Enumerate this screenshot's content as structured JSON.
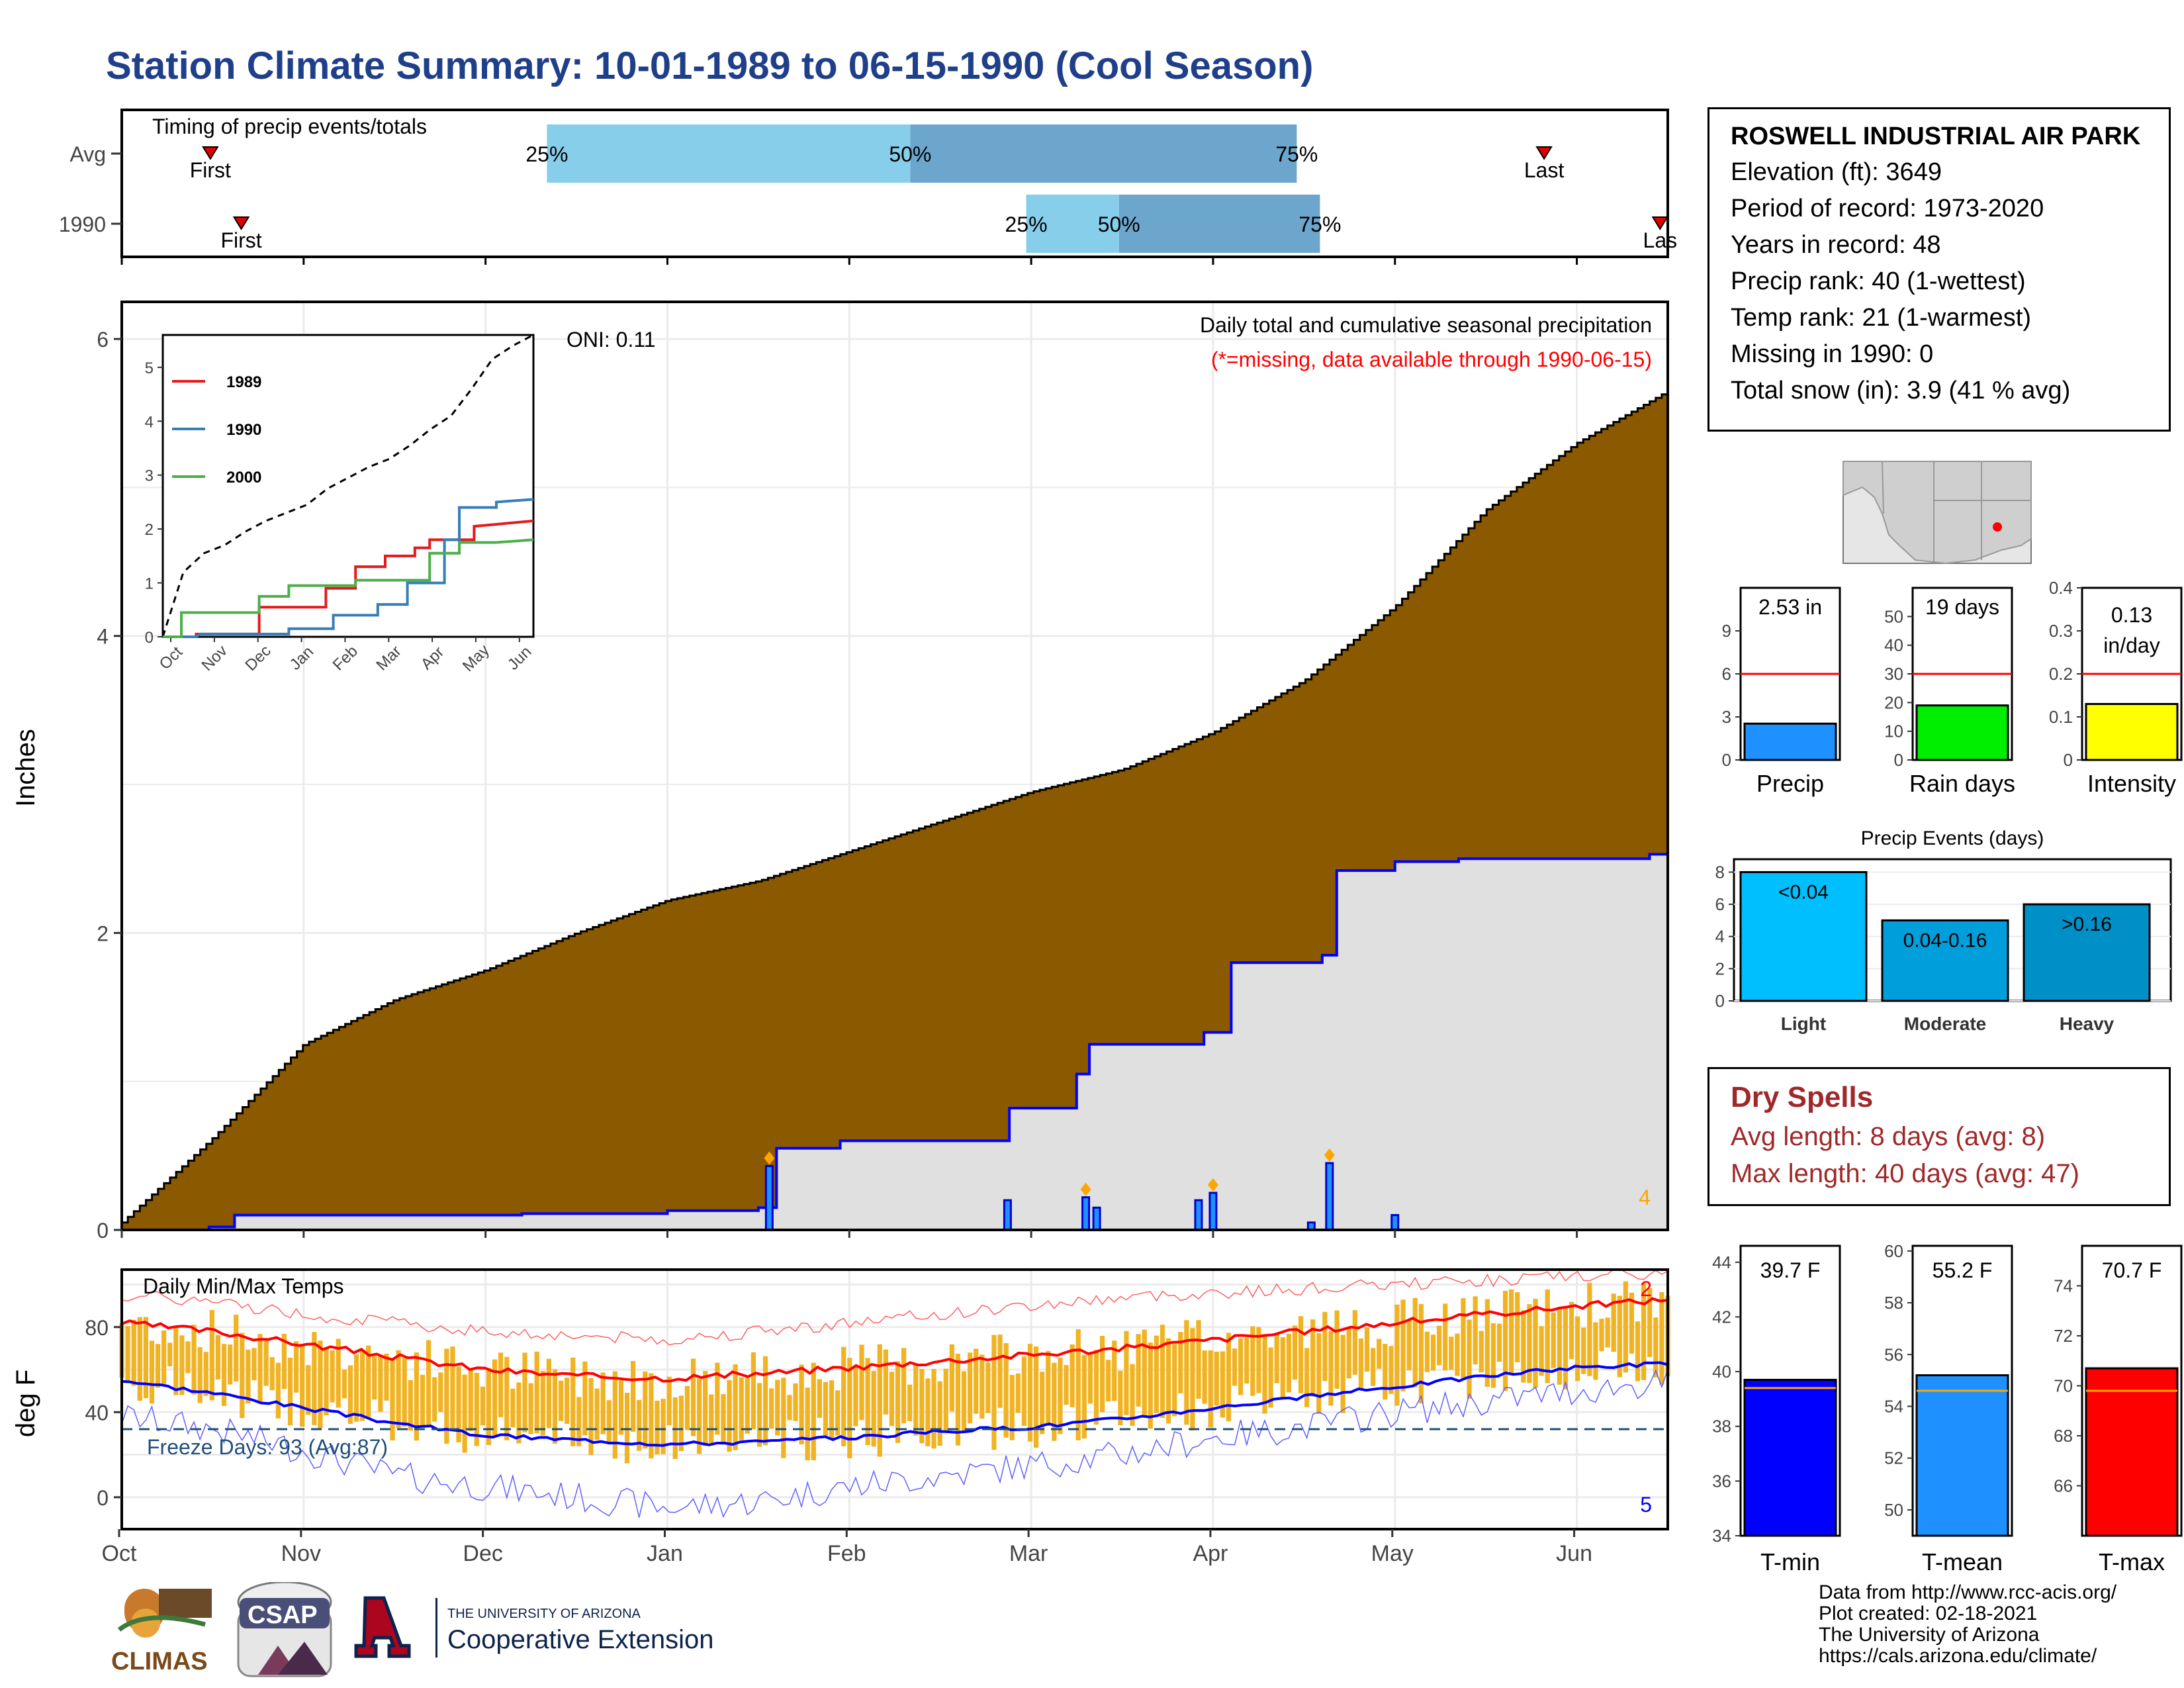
{
  "title": "Station Climate Summary: 10-01-1989 to 06-15-1990 (Cool Season)",
  "station": {
    "name": "ROSWELL INDUSTRIAL AIR PARK",
    "elevation": "Elevation (ft): 3649",
    "period": "Period of record: 1973-2020",
    "years": "Years in record: 48",
    "precip_rank": "Precip rank: 40 (1-wettest)",
    "temp_rank": "Temp rank: 21 (1-warmest)",
    "missing": "Missing in 1990: 0",
    "snow": "Total snow (in): 3.9 (41 % avg)"
  },
  "timing": {
    "label": "Timing of precip events/totals",
    "rows": [
      {
        "name": "Avg",
        "first_label": "First",
        "last_label": "Last",
        "first_x": 0.19,
        "last_x": 0.92,
        "p25": 0.275,
        "p50": 0.51,
        "p75": 0.76,
        "p25_label": "25%",
        "p50_label": "50%",
        "p75_label": "75%"
      },
      {
        "name": "1990",
        "first_label": "First",
        "last_label": "Las",
        "first_x": 0.21,
        "last_x": 0.995,
        "p25": 0.585,
        "p50": 0.645,
        "p75": 0.775,
        "p25_label": "25%",
        "p50_label": "50%",
        "p75_label": "75%"
      }
    ]
  },
  "precip_panel": {
    "ylabel": "Inches",
    "yticks": [
      0,
      2,
      4,
      6
    ],
    "ymax": 6.25,
    "caption": "Daily total and cumulative seasonal precipitation",
    "missing_note": "(*=missing, data available through 1990-06-15)",
    "oni": "ONI: 0.11",
    "event_count": "4",
    "months": [
      "Oct",
      "Nov",
      "Dec",
      "Jan",
      "Feb",
      "Mar",
      "Apr",
      "May",
      "Jun"
    ]
  },
  "inset": {
    "yticks": [
      0,
      1,
      2,
      3,
      4,
      5
    ],
    "months": [
      "Oct",
      "Nov",
      "Dec",
      "Jan",
      "Feb",
      "Mar",
      "Apr",
      "May",
      "Jun"
    ],
    "legend": [
      {
        "name": "1989",
        "color": "#e41a1c"
      },
      {
        "name": "1990",
        "color": "#377eb8"
      },
      {
        "name": "2000",
        "color": "#4daf4a"
      }
    ]
  },
  "temp_panel": {
    "ylabel": "deg F",
    "label": "Daily Min/Max Temps",
    "yticks": [
      0,
      40,
      80
    ],
    "freeze_label": "Freeze Days: 93 (Avg:87)",
    "max_count": "2",
    "min_count": "5",
    "months": [
      "Oct",
      "Nov",
      "Dec",
      "Jan",
      "Feb",
      "Mar",
      "Apr",
      "May",
      "Jun"
    ]
  },
  "mini_bars": [
    {
      "label": "Precip",
      "value_text": "2.53 in",
      "value": 2.53,
      "avg": 6,
      "ymax": 12,
      "ticks": [
        0,
        3,
        6,
        9
      ],
      "color": "#1e90ff"
    },
    {
      "label": "Rain days",
      "value_text": "19 days",
      "value": 19,
      "avg": 30,
      "ymax": 60,
      "ticks": [
        0,
        10,
        20,
        30,
        40,
        50
      ],
      "color": "#00ee00"
    },
    {
      "label": "Intensity",
      "value_text": "0.13 in/day",
      "value": 0.13,
      "avg": 0.2,
      "ymax": 0.4,
      "ticks": [
        0.0,
        0.1,
        0.2,
        0.3,
        0.4
      ],
      "color": "#ffff00"
    }
  ],
  "events": {
    "title": "Precip Events (days)",
    "ticks": [
      0,
      2,
      4,
      6,
      8
    ],
    "bars": [
      {
        "label": "Light",
        "value": 8,
        "text": "<0.04",
        "color": "#00bfff"
      },
      {
        "label": "Moderate",
        "value": 5,
        "text": "0.04-0.16",
        "color": "#009edb"
      },
      {
        "label": "Heavy",
        "value": 6,
        "text": ">0.16",
        "color": "#0090c8"
      }
    ]
  },
  "dry_spells": {
    "title": "Dry Spells",
    "avg": "Avg length: 8 days (avg: 8)",
    "max": "Max length: 40 days (avg: 47)"
  },
  "temp_bars": [
    {
      "label": "T-min",
      "value_text": "39.7 F",
      "value": 39.7,
      "avg": 39.4,
      "ymin": 34,
      "ymax": 44.6,
      "ticks": [
        34,
        36,
        38,
        40,
        42,
        44
      ],
      "color": "#0000ff"
    },
    {
      "label": "T-mean",
      "value_text": "55.2 F",
      "value": 55.2,
      "avg": 54.6,
      "ymin": 49,
      "ymax": 60.2,
      "ticks": [
        50,
        52,
        54,
        56,
        58,
        60
      ],
      "color": "#1e90ff"
    },
    {
      "label": "T-max",
      "value_text": "70.7 F",
      "value": 70.7,
      "avg": 69.8,
      "ymin": 64,
      "ymax": 75.6,
      "ticks": [
        66,
        68,
        70,
        72,
        74
      ],
      "color": "#ff0000"
    }
  ],
  "logos": {
    "climas": "CLIMAS",
    "csap": "CSAP",
    "ua_top": "THE UNIVERSITY OF ARIZONA",
    "ua_main": "Cooperative Extension"
  },
  "credits": [
    "Data from http://www.rcc-acis.org/",
    "Plot created: 02-18-2021",
    "The University of Arizona",
    "https://cals.arizona.edu/climate/"
  ],
  "chart_data": [
    {
      "type": "area",
      "title": "Daily total and cumulative seasonal precipitation",
      "ylabel": "Inches",
      "ylim": [
        0,
        6.25
      ],
      "x": [
        "Oct 1",
        "Oct 15",
        "Nov 1",
        "Nov 15",
        "Dec 1",
        "Dec 15",
        "Jan 1",
        "Jan 15",
        "Feb 1",
        "Feb 15",
        "Mar 1",
        "Mar 15",
        "Apr 1",
        "Apr 15",
        "May 1",
        "May 15",
        "Jun 1",
        "Jun 15"
      ],
      "series": [
        {
          "name": "avg cumulative",
          "values": [
            0.05,
            0.62,
            1.25,
            1.55,
            1.75,
            2.0,
            2.22,
            2.35,
            2.55,
            2.75,
            2.95,
            3.1,
            3.35,
            3.7,
            4.2,
            4.85,
            5.3,
            5.65
          ]
        },
        {
          "name": "1990 cumulative",
          "values": [
            0.0,
            0.05,
            0.1,
            0.1,
            0.11,
            0.13,
            0.15,
            0.15,
            0.58,
            0.6,
            0.6,
            1.05,
            1.3,
            2.35,
            2.45,
            2.5,
            2.5,
            2.53
          ]
        }
      ],
      "daily_events": [
        {
          "x": "Jan 18",
          "y": 0.43
        },
        {
          "x": "Feb 27",
          "y": 0.2
        },
        {
          "x": "Mar 10",
          "y": 0.22
        },
        {
          "x": "Mar 12",
          "y": 0.15
        },
        {
          "x": "Mar 29",
          "y": 0.2
        },
        {
          "x": "Apr 1",
          "y": 0.25
        },
        {
          "x": "Apr 17",
          "y": 0.05
        },
        {
          "x": "Apr 20",
          "y": 0.45
        },
        {
          "x": "May 1",
          "y": 0.1
        }
      ]
    },
    {
      "type": "line",
      "title": "Daily Min/Max Temps",
      "ylabel": "deg F",
      "ylim": [
        -15,
        107
      ],
      "x": [
        "Oct 1",
        "Oct 15",
        "Nov 1",
        "Nov 15",
        "Dec 1",
        "Dec 15",
        "Jan 1",
        "Jan 15",
        "Feb 1",
        "Feb 15",
        "Mar 1",
        "Mar 15",
        "Apr 1",
        "Apr 15",
        "May 1",
        "May 15",
        "Jun 1",
        "Jun 15"
      ],
      "series": [
        {
          "name": "avg max",
          "values": [
            82,
            78,
            72,
            66,
            60,
            57,
            56,
            58,
            61,
            64,
            67,
            70,
            74,
            78,
            82,
            86,
            90,
            93
          ]
        },
        {
          "name": "avg min",
          "values": [
            55,
            49,
            42,
            35,
            29,
            27,
            25,
            26,
            28,
            31,
            33,
            37,
            42,
            47,
            52,
            57,
            61,
            63
          ]
        },
        {
          "name": "record high",
          "values": [
            95,
            92,
            86,
            82,
            78,
            76,
            74,
            78,
            82,
            86,
            90,
            94,
            96,
            98,
            100,
            102,
            104,
            105
          ]
        },
        {
          "name": "record low",
          "values": [
            38,
            32,
            22,
            10,
            5,
            0,
            -5,
            -2,
            5,
            10,
            15,
            20,
            28,
            33,
            40,
            45,
            50,
            54
          ]
        }
      ],
      "freeze_line": 32
    }
  ]
}
